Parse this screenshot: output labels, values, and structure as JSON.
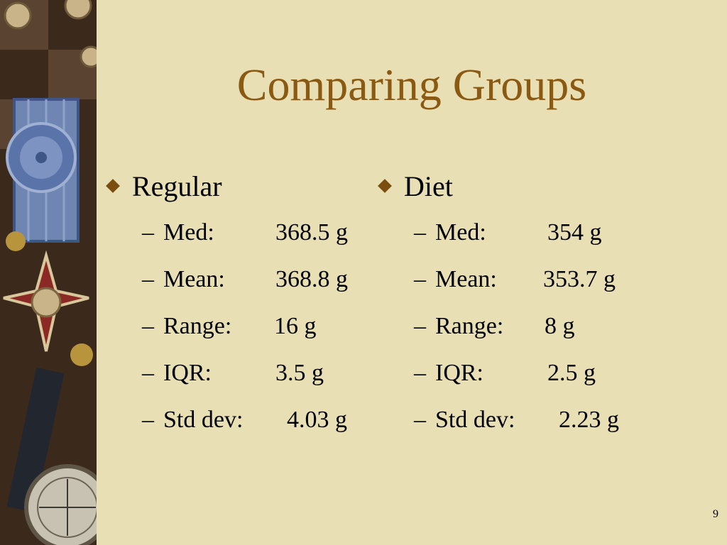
{
  "slide": {
    "title": "Comparing Groups",
    "page_number": "9"
  },
  "left": {
    "heading": "Regular",
    "items": [
      {
        "label": "Med:",
        "value": "368.5 g"
      },
      {
        "label": "Mean:",
        "value": "368.8 g"
      },
      {
        "label": "Range:",
        "value": "16 g"
      },
      {
        "label": "IQR:",
        "value": "3.5 g"
      },
      {
        "label": "Std dev:",
        "value": "4.03 g"
      }
    ]
  },
  "right": {
    "heading": "Diet",
    "items": [
      {
        "label": "Med:",
        "value": "354 g"
      },
      {
        "label": "Mean:",
        "value": "353.7 g"
      },
      {
        "label": "Range:",
        "value": "8 g"
      },
      {
        "label": "IQR:",
        "value": "2.5 g"
      },
      {
        "label": "Std dev:",
        "value": "2.23 g"
      }
    ]
  },
  "colors": {
    "background": "#e9dfb5",
    "title": "#8a5a12",
    "bullet": "#7a4e0e"
  }
}
